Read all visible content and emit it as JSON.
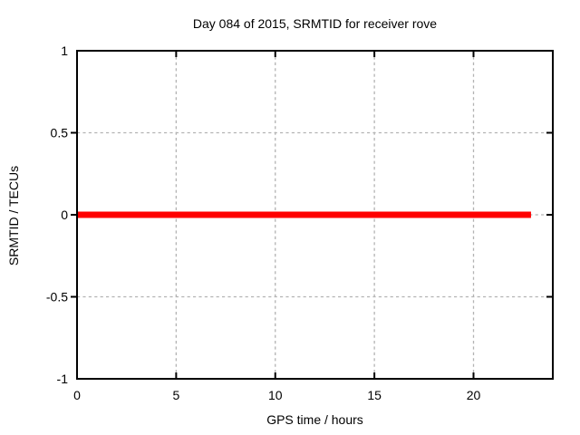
{
  "window": {
    "background": "#ffffff"
  },
  "chart_data": {
    "type": "line",
    "title": "Day 084 of 2015, SRMTID for receiver rove",
    "xlabel": "GPS time / hours",
    "ylabel": "SRMTID / TECUs",
    "xlim": [
      0,
      24
    ],
    "ylim": [
      -1,
      1
    ],
    "xticks": {
      "values": [
        0,
        5,
        10,
        15,
        20
      ],
      "labels": [
        "0",
        "5",
        "10",
        "15",
        "20"
      ]
    },
    "yticks": {
      "values": [
        -1,
        -0.5,
        0,
        0.5,
        1
      ],
      "labels": [
        "-1",
        "-0.5",
        "0",
        "0.5",
        "1"
      ]
    },
    "grid": true,
    "grid_xticks": [
      5,
      10,
      15,
      20
    ],
    "grid_yticks": [
      -0.5,
      0,
      0.5
    ],
    "legend": "none",
    "series": [
      {
        "name": "SRMTID",
        "color": "#ff0000",
        "line_width": 7,
        "x": [
          0,
          22.9
        ],
        "y": [
          0,
          0
        ]
      }
    ],
    "colors": {
      "grid": "#b3b3b3",
      "border": "#000000",
      "text": "#000000"
    }
  }
}
